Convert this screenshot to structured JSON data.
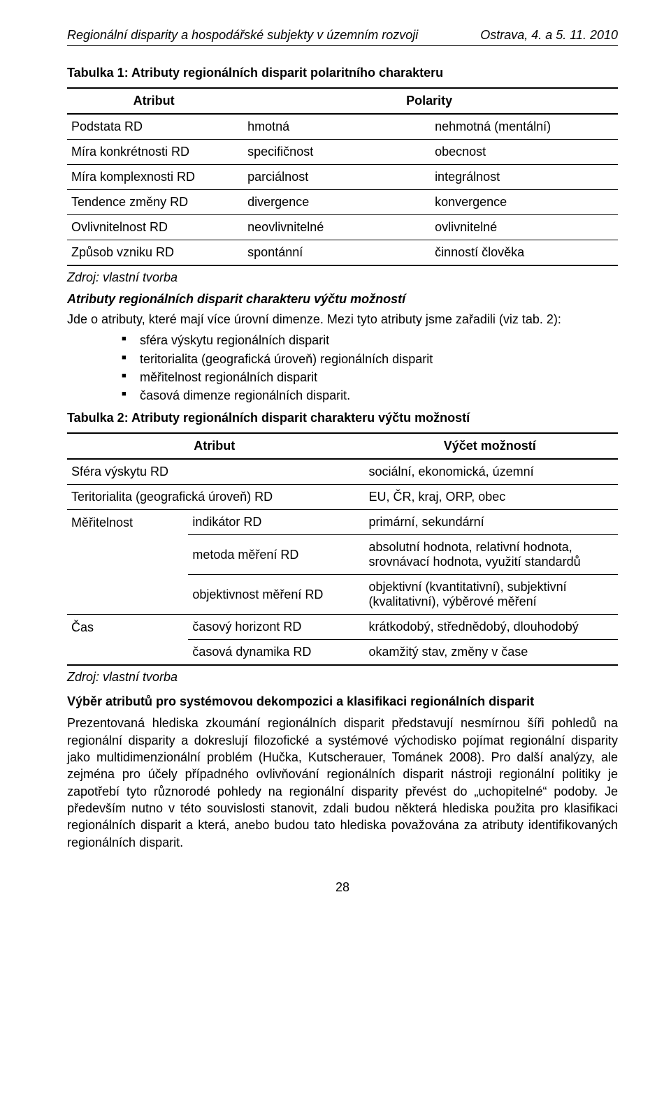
{
  "header": {
    "left": "Regionální disparity a hospodářské subjekty v územním rozvoji",
    "right": "Ostrava, 4. a 5. 11. 2010"
  },
  "table1": {
    "title": "Tabulka 1: Atributy regionálních disparit polaritního charakteru",
    "head": {
      "attribute": "Atribut",
      "polarity": "Polarity"
    },
    "rows": [
      {
        "a": "Podstata RD",
        "b": "hmotná",
        "c": "nehmotná (mentální)"
      },
      {
        "a": "Míra konkrétnosti RD",
        "b": "specifičnost",
        "c": "obecnost"
      },
      {
        "a": "Míra komplexnosti RD",
        "b": "parciálnost",
        "c": "integrálnost"
      },
      {
        "a": "Tendence změny RD",
        "b": "divergence",
        "c": "konvergence"
      },
      {
        "a": "Ovlivnitelnost RD",
        "b": "neovlivnitelné",
        "c": "ovlivnitelné"
      },
      {
        "a": "Způsob vzniku RD",
        "b": "spontánní",
        "c": "činností člověka"
      }
    ],
    "source": "Zdroj: vlastní tvorba"
  },
  "attrSection": {
    "subheading": "Atributy regionálních disparit charakteru výčtu možností",
    "intro": "Jde o atributy, které mají více úrovní dimenze. Mezi tyto atributy jsme zařadili (viz tab. 2):",
    "bullets": [
      "sféra výskytu regionálních disparit",
      "teritorialita (geografická úroveň) regionálních disparit",
      "měřitelnost regionálních disparit",
      "časová dimenze regionálních disparit."
    ]
  },
  "table2": {
    "title": "Tabulka 2: Atributy regionálních disparit charakteru výčtu možností",
    "head": {
      "attribute": "Atribut",
      "options": "Výčet možností"
    },
    "rows": {
      "r1": {
        "a": "Sféra výskytu RD",
        "c": "sociální, ekonomická, územní"
      },
      "r2": {
        "a": "Teritorialita (geografická úroveň) RD",
        "c": "EU, ČR, kraj, ORP, obec"
      },
      "r3": {
        "a": "Měřitelnost",
        "b": "indikátor RD",
        "c": "primární, sekundární"
      },
      "r4": {
        "b": "metoda měření RD",
        "c": "absolutní hodnota, relativní hodnota, srovnávací hodnota, využití standardů"
      },
      "r5": {
        "b": "objektivnost měření RD",
        "c": "objektivní (kvantitativní), subjektivní (kvalitativní), výběrové měření"
      },
      "r6": {
        "a": "Čas",
        "b": "časový horizont RD",
        "c": "krátkodobý, střednědobý, dlouhodobý"
      },
      "r7": {
        "b": "časová dynamika RD",
        "c": "okamžitý stav, změny v čase"
      }
    },
    "source": "Zdroj: vlastní tvorba"
  },
  "selection": {
    "heading": "Výběr atributů pro systémovou dekompozici a klasifikaci regionálních disparit",
    "paragraph": "Prezentovaná hlediska zkoumání regionálních disparit představují nesmírnou šíři pohledů na regionální disparity a dokreslují filozofické a systémové východisko pojímat regionální disparity jako multidimenzionální problém (Hučka, Kutscherauer, Tománek 2008). Pro další analýzy, ale zejména pro účely případného ovlivňování regionálních disparit nástroji regionální politiky je zapotřebí tyto různorodé pohledy na regionální disparity převést do „uchopitelné“ podoby. Je především nutno v této souvislosti stanovit, zdali budou některá hlediska použita pro klasifikaci regionálních disparit a která, anebo budou tato hlediska považována za atributy identifikovaných regionálních disparit."
  },
  "pageNumber": "28"
}
